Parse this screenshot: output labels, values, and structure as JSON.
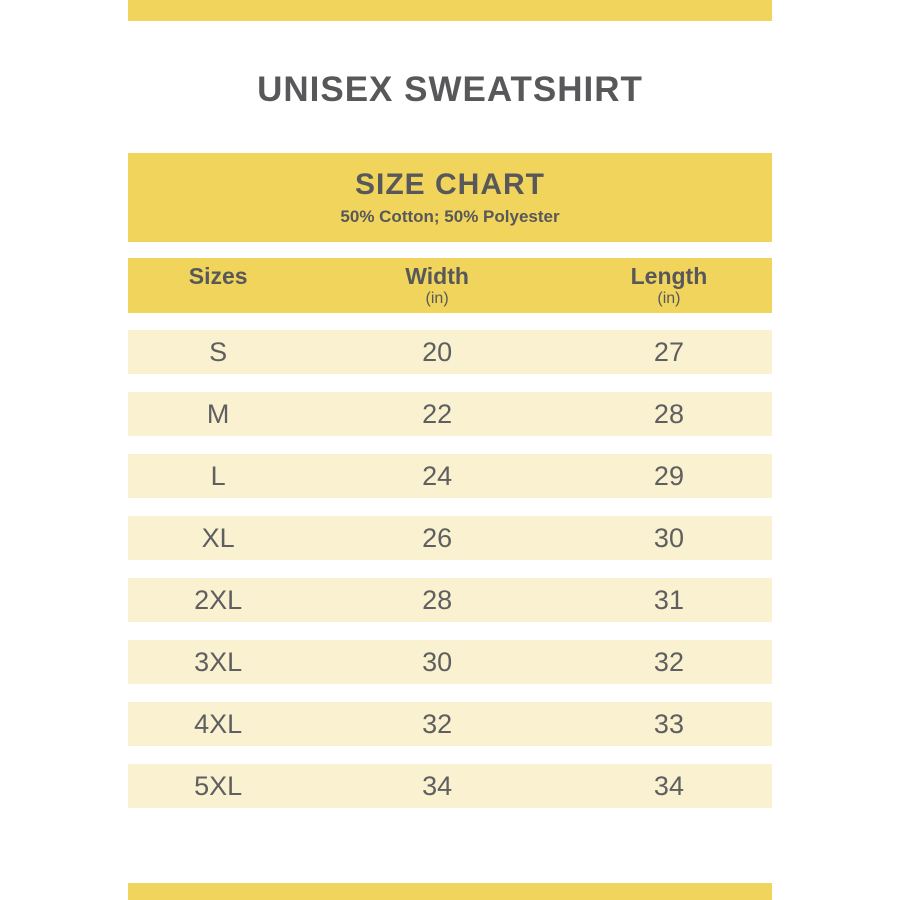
{
  "header": {
    "title": "UNISEX SWEATSHIRT"
  },
  "banner": {
    "title": "SIZE CHART",
    "subtitle": "50% Cotton; 50% Polyester"
  },
  "table": {
    "columns": [
      {
        "label": "Sizes",
        "unit": ""
      },
      {
        "label": "Width",
        "unit": "(in)"
      },
      {
        "label": "Length",
        "unit": "(in)"
      }
    ],
    "rows": [
      {
        "size": "S",
        "width": "20",
        "length": "27"
      },
      {
        "size": "M",
        "width": "22",
        "length": "28"
      },
      {
        "size": "L",
        "width": "24",
        "length": "29"
      },
      {
        "size": "XL",
        "width": "26",
        "length": "30"
      },
      {
        "size": "2XL",
        "width": "28",
        "length": "31"
      },
      {
        "size": "3XL",
        "width": "30",
        "length": "32"
      },
      {
        "size": "4XL",
        "width": "32",
        "length": "33"
      },
      {
        "size": "5XL",
        "width": "34",
        "length": "34"
      }
    ]
  },
  "colors": {
    "accent_yellow": "#F0D45B",
    "row_cream": "#F9F1CF",
    "text_dark": "#58585A",
    "text_data": "#5F5F61",
    "background": "#FFFFFF"
  },
  "chart_data": {
    "type": "table",
    "title": "SIZE CHART",
    "subtitle": "50% Cotton; 50% Polyester",
    "columns": [
      "Sizes",
      "Width (in)",
      "Length (in)"
    ],
    "rows": [
      [
        "S",
        20,
        27
      ],
      [
        "M",
        22,
        28
      ],
      [
        "L",
        24,
        29
      ],
      [
        "XL",
        26,
        30
      ],
      [
        "2XL",
        28,
        31
      ],
      [
        "3XL",
        30,
        32
      ],
      [
        "4XL",
        32,
        33
      ],
      [
        "5XL",
        34,
        34
      ]
    ]
  }
}
